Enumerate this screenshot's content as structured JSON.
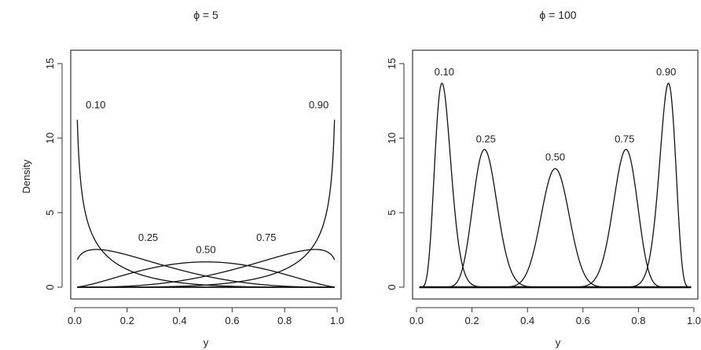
{
  "figure": {
    "ylabel": "Density",
    "xlabel": "y"
  },
  "chart_data": [
    {
      "type": "line",
      "title": "ϕ = 5",
      "xlabel": "y",
      "ylabel": "Density",
      "xlim": [
        0,
        1
      ],
      "ylim": [
        0,
        15
      ],
      "xticks": [
        "0.0",
        "0.2",
        "0.4",
        "0.6",
        "0.8",
        "1.0"
      ],
      "yticks": [
        "0",
        "5",
        "10",
        "15"
      ],
      "curve_family": "beta density, mean mu, precision phi",
      "phi": 5,
      "series": [
        {
          "name": "0.10",
          "mu": 0.1
        },
        {
          "name": "0.25",
          "mu": 0.25
        },
        {
          "name": "0.50",
          "mu": 0.5
        },
        {
          "name": "0.75",
          "mu": 0.75
        },
        {
          "name": "0.90",
          "mu": 0.9
        }
      ],
      "x_range": [
        0.01,
        0.99
      ],
      "baseline": 0,
      "grid": false,
      "legend": "none"
    },
    {
      "type": "line",
      "title": "ϕ = 100",
      "xlabel": "y",
      "ylabel": "",
      "xlim": [
        0,
        1
      ],
      "ylim": [
        0,
        15
      ],
      "xticks": [
        "0.0",
        "0.2",
        "0.4",
        "0.6",
        "0.8",
        "1.0"
      ],
      "yticks": [
        "0",
        "5",
        "10",
        "15"
      ],
      "curve_family": "beta density, mean mu, precision phi",
      "phi": 100,
      "series": [
        {
          "name": "0.10",
          "mu": 0.1
        },
        {
          "name": "0.25",
          "mu": 0.25
        },
        {
          "name": "0.50",
          "mu": 0.5
        },
        {
          "name": "0.75",
          "mu": 0.75
        },
        {
          "name": "0.90",
          "mu": 0.9
        }
      ],
      "x_range": [
        0.01,
        0.99
      ],
      "baseline": 0,
      "grid": false,
      "legend": "none"
    }
  ]
}
